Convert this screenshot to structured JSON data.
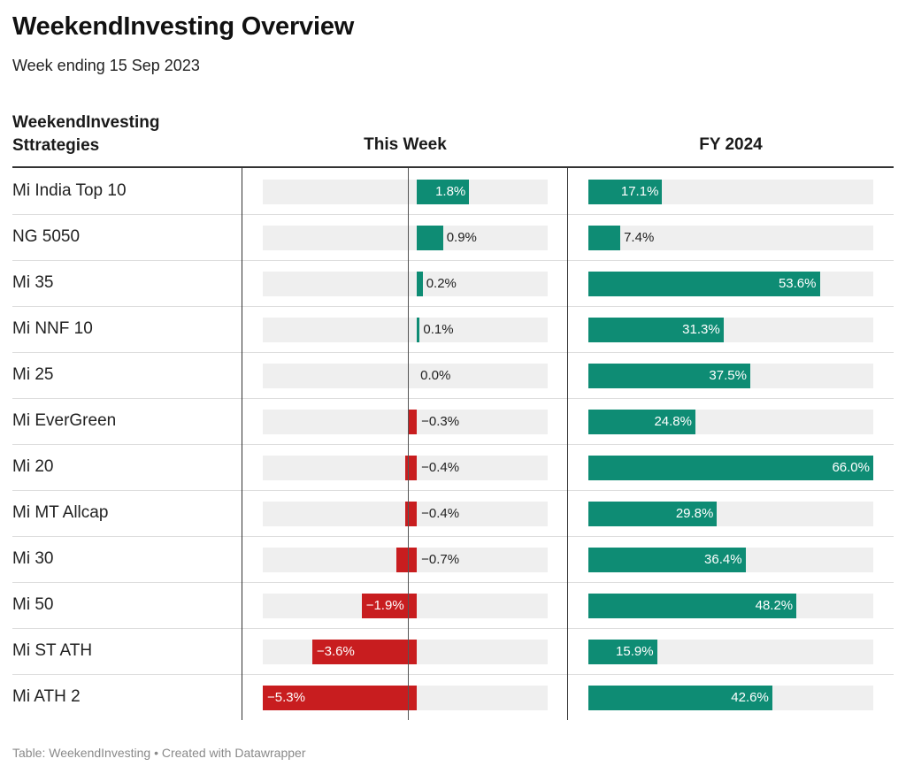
{
  "title": "WeekendInvesting Overview",
  "subtitle": "Week ending 15 Sep 2023",
  "columns": {
    "name": "WeekendInvesting Sttrategies",
    "week": "This Week",
    "fy": "FY 2024"
  },
  "footer": "Table: WeekendInvesting • Created with Datawrapper",
  "colors": {
    "positive": "#0e8c74",
    "negative": "#c81d1f",
    "track": "#efefef"
  },
  "chart_data": {
    "type": "table",
    "columns": [
      "WeekendInvesting Sttrategies",
      "This Week",
      "FY 2024"
    ],
    "week_range": [
      -5.3,
      4.5
    ],
    "fy_range": [
      0,
      66.0
    ],
    "rows": [
      {
        "name": "Mi India Top 10",
        "week": 1.8,
        "week_label": "1.8%",
        "fy": 17.1,
        "fy_label": "17.1%"
      },
      {
        "name": "NG 5050",
        "week": 0.9,
        "week_label": "0.9%",
        "fy": 7.4,
        "fy_label": "7.4%"
      },
      {
        "name": "Mi 35",
        "week": 0.2,
        "week_label": "0.2%",
        "fy": 53.6,
        "fy_label": "53.6%"
      },
      {
        "name": "Mi NNF 10",
        "week": 0.1,
        "week_label": "0.1%",
        "fy": 31.3,
        "fy_label": "31.3%"
      },
      {
        "name": "Mi 25",
        "week": 0.0,
        "week_label": "0.0%",
        "fy": 37.5,
        "fy_label": "37.5%"
      },
      {
        "name": "Mi EverGreen",
        "week": -0.3,
        "week_label": "−0.3%",
        "fy": 24.8,
        "fy_label": "24.8%"
      },
      {
        "name": "Mi 20",
        "week": -0.4,
        "week_label": "−0.4%",
        "fy": 66.0,
        "fy_label": "66.0%"
      },
      {
        "name": "Mi MT Allcap",
        "week": -0.4,
        "week_label": "−0.4%",
        "fy": 29.8,
        "fy_label": "29.8%"
      },
      {
        "name": "Mi 30",
        "week": -0.7,
        "week_label": "−0.7%",
        "fy": 36.4,
        "fy_label": "36.4%"
      },
      {
        "name": "Mi 50",
        "week": -1.9,
        "week_label": "−1.9%",
        "fy": 48.2,
        "fy_label": "48.2%"
      },
      {
        "name": "Mi ST ATH",
        "week": -3.6,
        "week_label": "−3.6%",
        "fy": 15.9,
        "fy_label": "15.9%"
      },
      {
        "name": "Mi ATH 2",
        "week": -5.3,
        "week_label": "−5.3%",
        "fy": 42.6,
        "fy_label": "42.6%"
      }
    ]
  }
}
